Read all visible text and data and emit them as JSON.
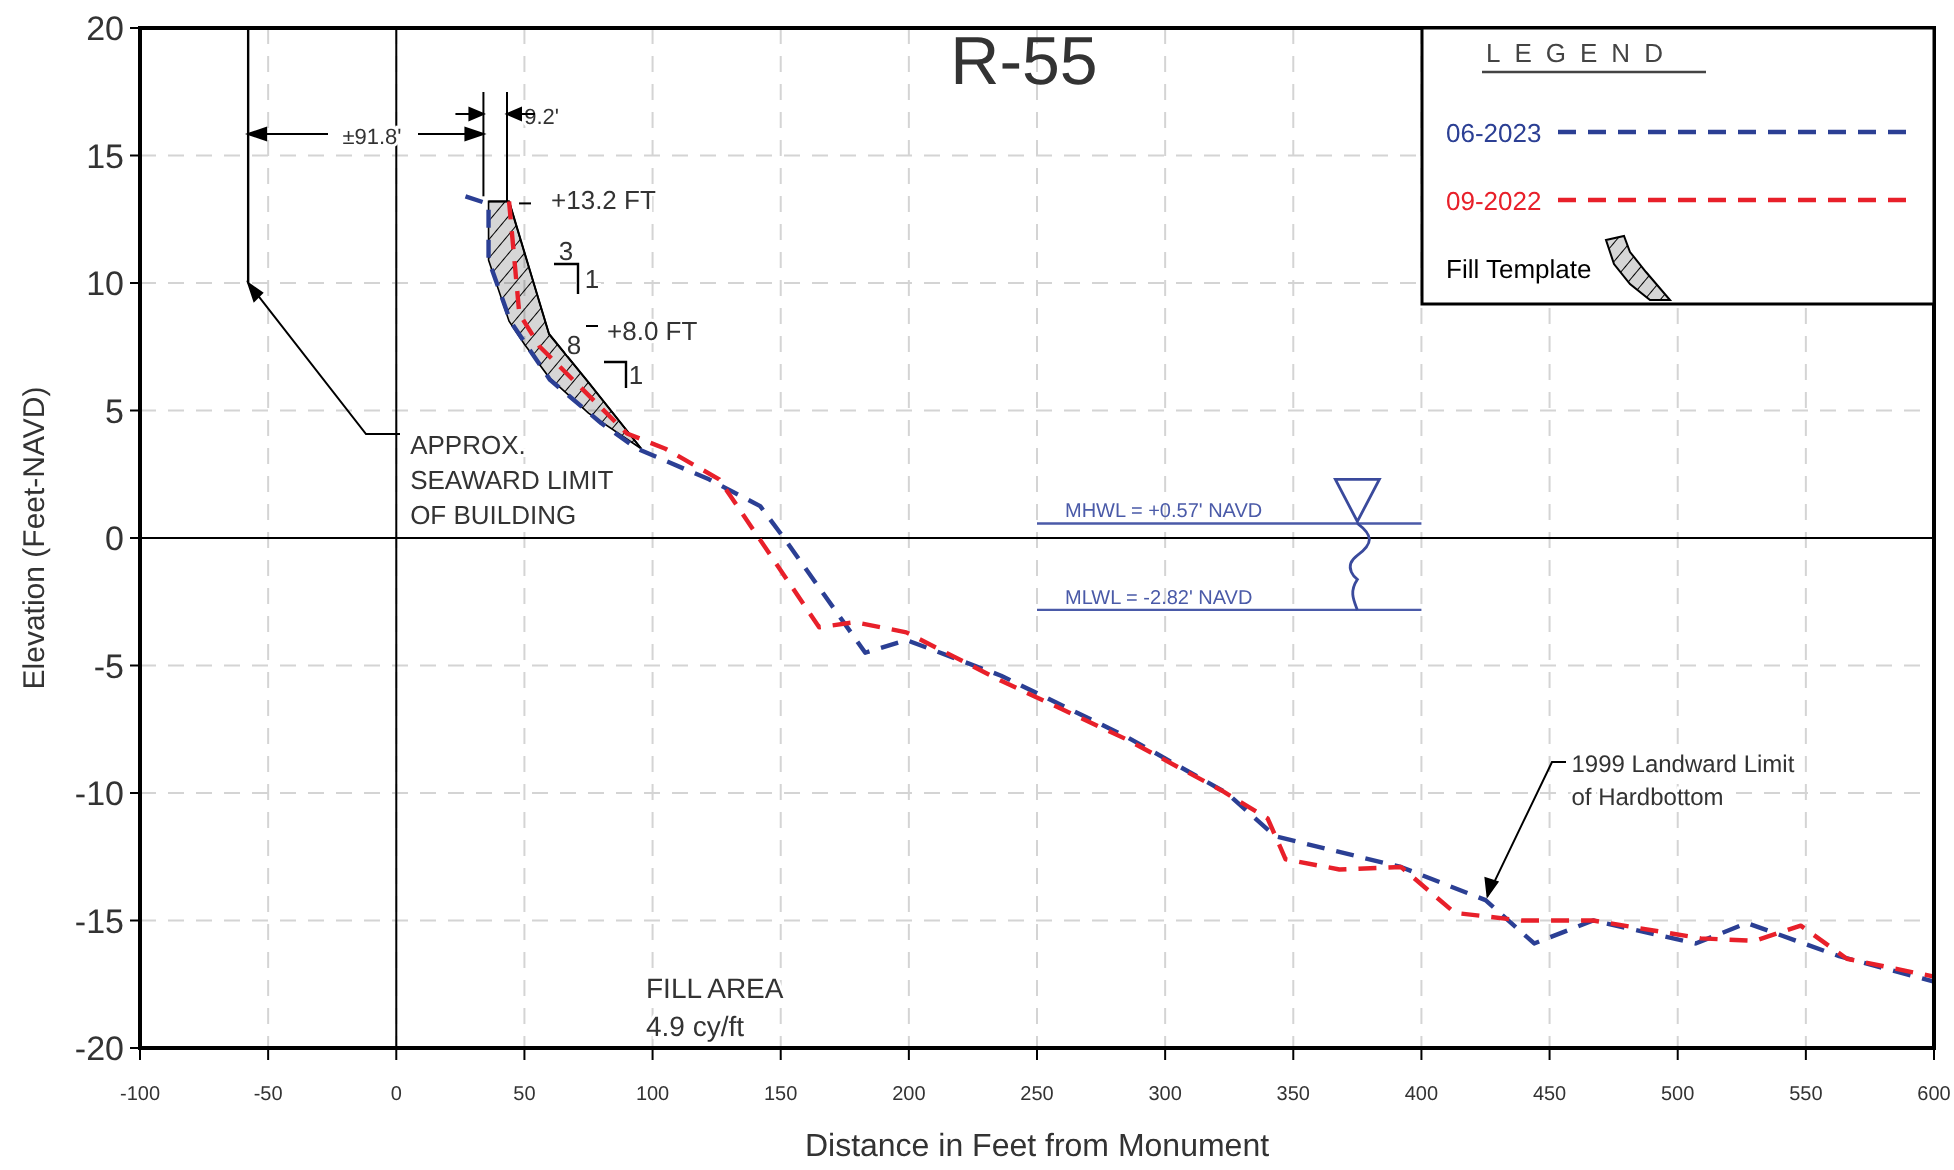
{
  "chart_data": {
    "type": "line",
    "title": "R-55",
    "xlabel": "Distance in Feet from Monument",
    "ylabel": "Elevation (Feet-NAVD)",
    "legend_title": "LEGEND",
    "legend": "top right",
    "grid": true,
    "line_style": "dashed",
    "xlim": [
      -100,
      600
    ],
    "xticks": [
      -100,
      -50,
      0,
      50,
      100,
      150,
      200,
      250,
      300,
      350,
      400,
      450,
      500,
      550,
      600
    ],
    "ylim": [
      -20,
      20
    ],
    "yticks": [
      -20,
      -15,
      -10,
      -5,
      0,
      5,
      10,
      15,
      20
    ],
    "series": [
      {
        "name": "06-2023",
        "color": "#2b3f94",
        "x": [
          27,
          36,
          36,
          44.5,
          60,
          80,
          94,
          122,
          142,
          152,
          183,
          199,
          236,
          285,
          324,
          343,
          392,
          425,
          444,
          467,
          507,
          527,
          563,
          600
        ],
        "values": [
          13.4,
          13.1,
          10.9,
          8.5,
          6.2,
          4.5,
          3.5,
          2.3,
          1.25,
          -0.1,
          -4.5,
          -4,
          -5.4,
          -7.8,
          -10,
          -11.7,
          -12.9,
          -14.2,
          -15.9,
          -15,
          -15.9,
          -15.1,
          -16.4,
          -17.4
        ]
      },
      {
        "name": "09-2022",
        "color": "#e8202a",
        "x": [
          44,
          48,
          56,
          90,
          105,
          126,
          165,
          179,
          199,
          236,
          285,
          322,
          340,
          347,
          368,
          392,
          413,
          439,
          467,
          509,
          530,
          548,
          566,
          600
        ],
        "values": [
          13.2,
          8.8,
          7.5,
          4.1,
          3.5,
          2.3,
          -3.5,
          -3.3,
          -3.7,
          -5.6,
          -7.9,
          -9.9,
          -11,
          -12.6,
          -13,
          -12.9,
          -14.7,
          -15,
          -15,
          -15.7,
          -15.8,
          -15.2,
          -16.5,
          -17.2
        ]
      },
      {
        "name": "Fill Template",
        "type": "line",
        "line_style": "solid",
        "color": "#000000",
        "x": [
          36,
          44,
          50,
          59.6,
          75,
          95.6
        ],
        "values": [
          13.2,
          13.2,
          11.2,
          8,
          6.1,
          3.5
        ],
        "lower": [
          10.9,
          8.5,
          7.6,
          6.3,
          4.9,
          3.5
        ],
        "upper": [
          13.2,
          13.2,
          11.2,
          8,
          6.1,
          3.5
        ]
      }
    ],
    "ref_lines": [
      {
        "axis": "x",
        "value": -57.8,
        "color": "#000000"
      },
      {
        "axis": "y",
        "value": 0.57,
        "label": "MHWL = +0.57' NAVD",
        "color": "#4a5aa8"
      },
      {
        "axis": "y",
        "value": -2.82,
        "label": "MLWL = -2.82' NAVD",
        "color": "#4a5aa8"
      }
    ],
    "annotations": [
      "±91.8'",
      {
        "text": "9.2'",
        "x": 44,
        "y": 13.2
      },
      {
        "text": "+13.2 FT",
        "x": 44,
        "y": 13.2
      },
      "3",
      "1",
      "8",
      "1",
      {
        "text": "+8.0 FT",
        "x": 59.6,
        "y": 8
      },
      {
        "text": "APPROX. SEAWARD LIMIT OF BUILDING",
        "x": -57.8,
        "y": 10
      },
      {
        "text": "1999 Landward Limit of Hardbottom",
        "x": 425,
        "y": -14.2
      },
      "FILL AREA 4.9 cy/ft"
    ]
  }
}
